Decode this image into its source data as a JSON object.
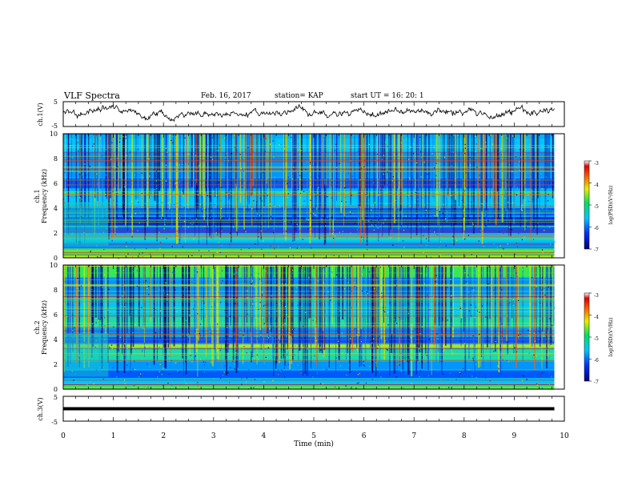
{
  "header": {
    "title": "VLF Spectra",
    "date": "Feb. 16, 2017",
    "station": "station= KAP",
    "start": "start  UT =   16: 20: 1"
  },
  "chart_data": [
    {
      "type": "line",
      "id": "ch1-waveform",
      "ylabel": "ch.1(V)",
      "ylim": [
        -5,
        5
      ],
      "yticks": [
        "5",
        "-5"
      ],
      "xlim": [
        0,
        10
      ],
      "series": [
        {
          "color": "#000000"
        }
      ]
    },
    {
      "type": "heatmap",
      "id": "ch1-spectrogram",
      "ylabel_lines": [
        "ch.1",
        "Frequency  (kHz)"
      ],
      "ylim": [
        0,
        10
      ],
      "yticks": [
        "0",
        "2",
        "4",
        "6",
        "8",
        "10"
      ],
      "xlim": [
        0,
        10
      ],
      "colorbar": {
        "label": "log(PSD)(V²/Hz)",
        "range": [
          -7,
          -3
        ],
        "ticks": [
          "-3",
          "-4",
          "-5",
          "-6",
          "-7"
        ]
      }
    },
    {
      "type": "heatmap",
      "id": "ch2-spectrogram",
      "ylabel_lines": [
        "ch.2",
        "Frequency  (kHz)"
      ],
      "ylim": [
        0,
        10
      ],
      "yticks": [
        "0",
        "2",
        "4",
        "6",
        "8",
        "10"
      ],
      "xlim": [
        0,
        10
      ],
      "colorbar": {
        "label": "log(PSD)(V²/Hz)",
        "range": [
          -7,
          -3
        ],
        "ticks": [
          "-3",
          "-4",
          "-5",
          "-6",
          "-7"
        ]
      }
    },
    {
      "type": "line",
      "id": "ch3-waveform",
      "ylabel": "ch.3(V)",
      "ylim": [
        -5,
        5
      ],
      "yticks": [
        "5",
        "-5"
      ],
      "xlim": [
        0,
        10
      ],
      "xlabel": "Time  (min)",
      "xticks": [
        "0",
        "1",
        "2",
        "3",
        "4",
        "5",
        "6",
        "7",
        "8",
        "9",
        "10"
      ],
      "series": [
        {
          "color": "#000000",
          "values": [
            0
          ]
        }
      ]
    }
  ]
}
